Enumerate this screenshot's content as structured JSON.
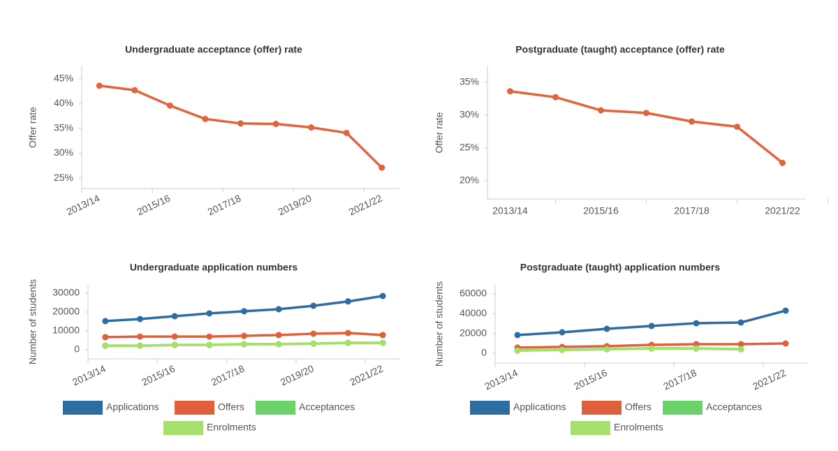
{
  "chart_data": [
    {
      "type": "line",
      "title": "Undergraduate acceptance (offer) rate",
      "y_label": "Offer rate",
      "categories": [
        "2013/14",
        null,
        "2015/16",
        null,
        "2017/18",
        null,
        "2019/20",
        null,
        "2021/22"
      ],
      "series": [
        {
          "name": "Offer rate",
          "color": "#e0653e",
          "values": [
            43.6,
            42.7,
            39.6,
            36.9,
            36.0,
            35.9,
            35.2,
            34.1,
            27.1
          ]
        }
      ],
      "ylim": [
        22.9,
        47.5
      ],
      "yticks": [
        {
          "value": 25,
          "label": "25%"
        },
        {
          "value": 30,
          "label": "30%"
        },
        {
          "value": 35,
          "label": "35%"
        },
        {
          "value": 40,
          "label": "40%"
        },
        {
          "value": 45,
          "label": "45%"
        }
      ],
      "legend": false
    },
    {
      "type": "line",
      "title": "Postgraduate (taught) acceptance (offer) rate",
      "y_label": "Offer rate",
      "categories": [
        "2013/14",
        null,
        "2015/16",
        null,
        "2017/18",
        null,
        "2021/22"
      ],
      "series": [
        {
          "name": "Offer rate",
          "color": "#e0653e",
          "values": [
            33.6,
            32.7,
            30.7,
            30.3,
            29.0,
            28.2,
            22.7
          ]
        }
      ],
      "ylim": [
        17.2,
        37.4
      ],
      "yticks": [
        {
          "value": 20,
          "label": "20%"
        },
        {
          "value": 25,
          "label": "25%"
        },
        {
          "value": 30,
          "label": "30%"
        },
        {
          "value": 35,
          "label": "35%"
        }
      ],
      "legend": false
    },
    {
      "type": "line",
      "title": "Undergraduate application numbers",
      "y_label": "Number of students",
      "categories": [
        "2013/14",
        null,
        "2015/16",
        null,
        "2017/18",
        null,
        "2019/20",
        null,
        "2021/22"
      ],
      "series": [
        {
          "name": "Applications",
          "color": "#2e6da4",
          "values": [
            15200,
            16300,
            17800,
            19300,
            20400,
            21500,
            23300,
            25600,
            28500
          ]
        },
        {
          "name": "Offers",
          "color": "#e0603c",
          "values": [
            6700,
            7000,
            7000,
            7000,
            7400,
            7800,
            8500,
            8900,
            7800
          ]
        },
        {
          "name": "Acceptances",
          "color": "#6cd36a",
          "values": [
            2200,
            2200,
            2600,
            2600,
            3000,
            3000,
            3300,
            3700,
            3700
          ]
        },
        {
          "name": "Enrolments",
          "color": "#a5e06a",
          "values": [
            2100,
            2100,
            2500,
            2500,
            2900,
            2900,
            3200,
            3600,
            3600
          ]
        }
      ],
      "ylim": [
        -4800,
        34400
      ],
      "yticks": [
        0,
        10000,
        20000,
        30000
      ],
      "legend": true
    },
    {
      "type": "line",
      "title": "Postgraduate (taught) application numbers",
      "y_label": "Number of students",
      "categories": [
        "2013/14",
        null,
        "2015/16",
        null,
        "2017/18",
        null,
        "2021/22"
      ],
      "series": [
        {
          "name": "Applications",
          "color": "#2e6da4",
          "values": [
            18400,
            21200,
            24700,
            27600,
            30400,
            31100,
            43100
          ]
        },
        {
          "name": "Offers",
          "color": "#e0603c",
          "values": [
            5700,
            6400,
            7100,
            8500,
            9200,
            9200,
            9900
          ]
        },
        {
          "name": "Acceptances",
          "color": "#6cd36a",
          "values": [
            2800,
            3500,
            4200,
            4900,
            4900,
            4200,
            null
          ]
        },
        {
          "name": "Enrolments",
          "color": "#a5e06a",
          "values": [
            2600,
            3300,
            4000,
            4700,
            4700,
            4000,
            null
          ]
        }
      ],
      "ylim": [
        -9900,
        69200
      ],
      "yticks": [
        0,
        20000,
        40000,
        60000
      ],
      "legend": true
    }
  ]
}
